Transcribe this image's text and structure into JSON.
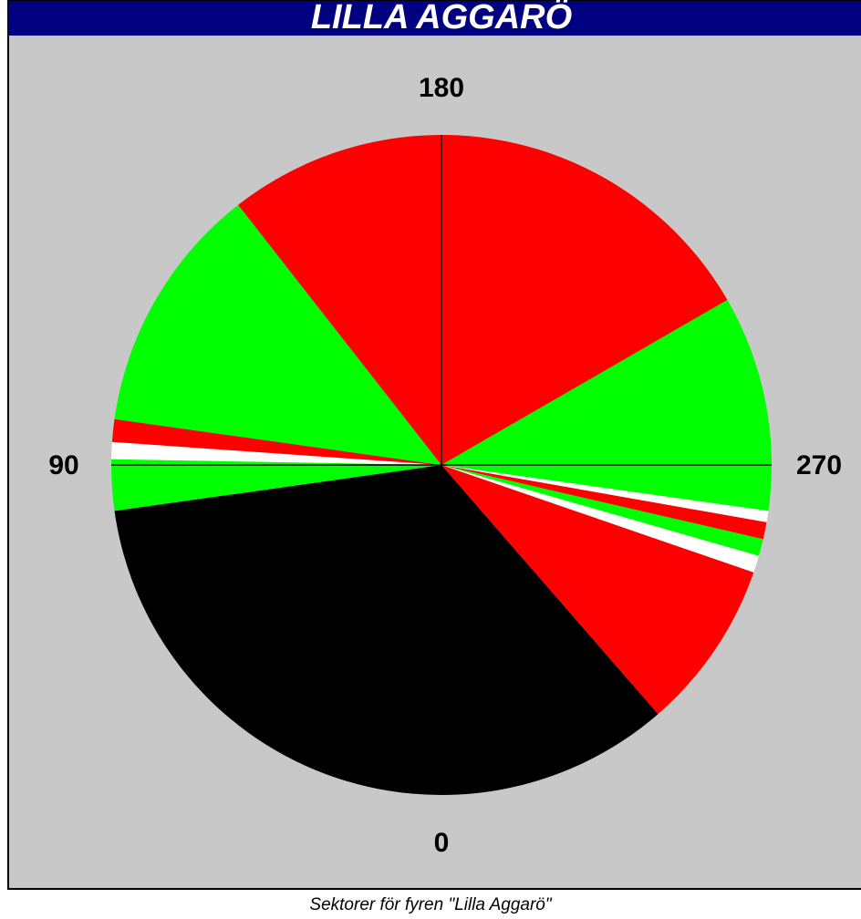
{
  "title": "LILLA AGGARÖ",
  "bearing_labels": [
    180,
    90,
    270,
    0
  ],
  "sectors": [
    {
      "from": 319,
      "to": 442,
      "color": "#000000"
    },
    {
      "from": 82,
      "to": 91,
      "color": "#00ff00"
    },
    {
      "from": 91,
      "to": 94,
      "color": "#ffffff"
    },
    {
      "from": 94,
      "to": 98,
      "color": "#ff0000"
    },
    {
      "from": 98,
      "to": 142,
      "color": "#00ff00"
    },
    {
      "from": 142,
      "to": 240,
      "color": "#ff0000"
    },
    {
      "from": 240,
      "to": 278,
      "color": "#00ff00"
    },
    {
      "from": 278,
      "to": 280,
      "color": "#ffffff"
    },
    {
      "from": 280,
      "to": 283,
      "color": "#ff0000"
    },
    {
      "from": 283,
      "to": 286,
      "color": "#00ff00"
    },
    {
      "from": 286,
      "to": 289,
      "color": "#ffffff"
    },
    {
      "from": 289,
      "to": 319,
      "color": "#ff0000"
    }
  ],
  "caption": "Sektorer för fyren \"Lilla Aggarö\""
}
